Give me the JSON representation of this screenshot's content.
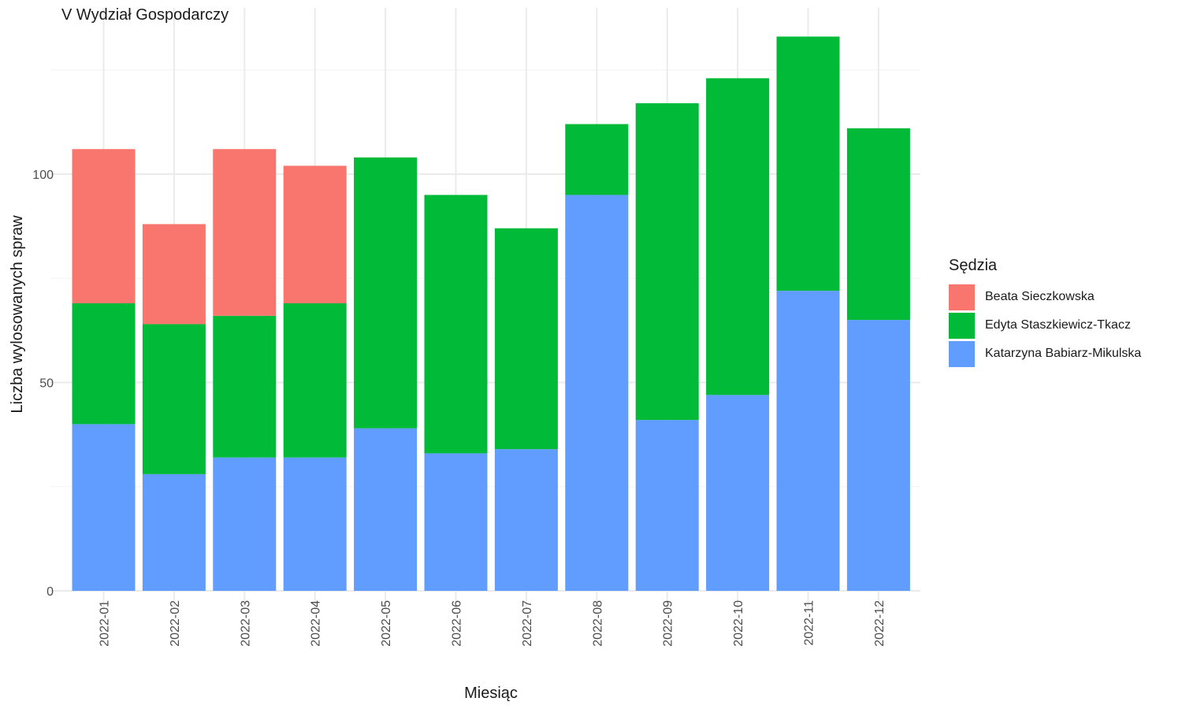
{
  "chart_data": {
    "type": "bar",
    "stacked": true,
    "title": "V Wydział Gospodarczy",
    "xlabel": "Miesiąc",
    "ylabel": "Liczba wylosowanych spraw",
    "ylim": [
      0,
      135
    ],
    "yticks": [
      0,
      50,
      100
    ],
    "grid": true,
    "legend_position": "right",
    "legend_title": "Sędzia",
    "categories": [
      "2022-01",
      "2022-02",
      "2022-03",
      "2022-04",
      "2022-05",
      "2022-06",
      "2022-07",
      "2022-08",
      "2022-09",
      "2022-10",
      "2022-11",
      "2022-12"
    ],
    "series": [
      {
        "name": "Katarzyna Babiarz-Mikulska",
        "color": "#619CFF",
        "values": [
          40,
          28,
          32,
          32,
          39,
          33,
          34,
          95,
          41,
          47,
          72,
          65
        ]
      },
      {
        "name": "Edyta Staszkiewicz-Tkacz",
        "color": "#00BA38",
        "values": [
          29,
          36,
          34,
          37,
          65,
          62,
          53,
          17,
          76,
          76,
          61,
          46
        ]
      },
      {
        "name": "Beata Sieczkowska",
        "color": "#F8766D",
        "values": [
          37,
          24,
          40,
          33,
          0,
          0,
          0,
          0,
          0,
          0,
          0,
          0
        ]
      }
    ],
    "legend_order": [
      "Beata Sieczkowska",
      "Edyta Staszkiewicz-Tkacz",
      "Katarzyna Babiarz-Mikulska"
    ]
  }
}
